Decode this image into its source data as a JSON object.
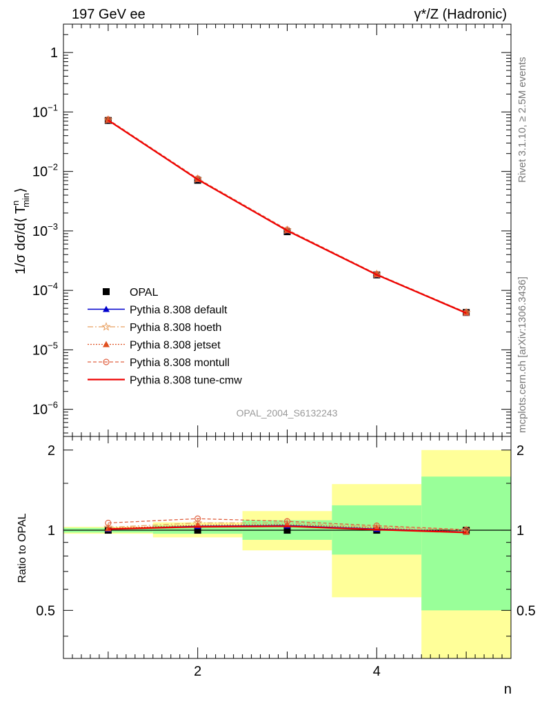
{
  "header": {
    "left": "197 GeV ee",
    "right": "γ*/Z (Hadronic)"
  },
  "side_labels": {
    "rivet": "Rivet 3.1.10, ≥ 2.5M events",
    "mcplots": "mcplots.cern.ch [arXiv:1306.3436]"
  },
  "analysis_id": "OPAL_2004_S6132243",
  "xlabel": "n",
  "colors": {
    "data": "#000000",
    "default": "#0000cc",
    "hoeth": "#e8a060",
    "jetset": "#e05020",
    "montull": "#e06040",
    "tunecmw": "#ee0000",
    "band_inner": "#99ff99",
    "band_outer": "#ffff99"
  },
  "legend": [
    {
      "key": "data",
      "label": "OPAL"
    },
    {
      "key": "default",
      "label": "Pythia 8.308 default"
    },
    {
      "key": "hoeth",
      "label": "Pythia 8.308 hoeth"
    },
    {
      "key": "jetset",
      "label": "Pythia 8.308 jetset"
    },
    {
      "key": "montull",
      "label": "Pythia 8.308 montull"
    },
    {
      "key": "tunecmw",
      "label": "Pythia 8.308 tune-cmw"
    }
  ],
  "chart_data": [
    {
      "type": "line",
      "ylabel_parts": {
        "main": "1/σ dσ/d⟨ T",
        "sup": "n",
        "sub": "min",
        "close": "⟩"
      },
      "yscale": "log",
      "xlim": [
        0.5,
        5.5
      ],
      "ylim": [
        3.5e-07,
        3.0
      ],
      "ytick_labels": [
        {
          "base": "1",
          "exp": ""
        },
        {
          "base": "10",
          "exp": "−1"
        },
        {
          "base": "10",
          "exp": "−2"
        },
        {
          "base": "10",
          "exp": "−3"
        },
        {
          "base": "10",
          "exp": "−4"
        },
        {
          "base": "10",
          "exp": "−5"
        },
        {
          "base": "10",
          "exp": "−6"
        }
      ],
      "x": [
        1,
        2,
        3,
        4,
        5
      ],
      "data_values": [
        0.072,
        0.0071,
        0.00097,
        0.000182,
        4.25e-05
      ],
      "series": [
        {
          "key": "default",
          "name": "Pythia 8.308 default",
          "values": [
            0.0727,
            0.00735,
            0.00101,
            0.000184,
            4.18e-05
          ]
        },
        {
          "key": "hoeth",
          "name": "Pythia 8.308 hoeth",
          "values": [
            0.0735,
            0.00748,
            0.00103,
            0.000187,
            4.25e-05
          ]
        },
        {
          "key": "jetset",
          "name": "Pythia 8.308 jetset",
          "values": [
            0.073,
            0.0074,
            0.00102,
            0.000185,
            4.2e-05
          ]
        },
        {
          "key": "montull",
          "name": "Pythia 8.308 montull",
          "values": [
            0.075,
            0.0076,
            0.00105,
            0.000188,
            4.26e-05
          ]
        },
        {
          "key": "tunecmw",
          "name": "Pythia 8.308 tune-cmw",
          "values": [
            0.0726,
            0.00733,
            0.00101,
            0.000183,
            4.15e-05
          ]
        }
      ]
    },
    {
      "type": "line",
      "ylabel": "Ratio to OPAL",
      "xlim": [
        0.5,
        5.5
      ],
      "ylim": [
        0.33,
        2.25
      ],
      "xtick_labels": [
        "2",
        "4"
      ],
      "ytick_labels": [
        "0.5",
        "1",
        "2"
      ],
      "bands": [
        {
          "x0": 0.5,
          "x1": 1.5,
          "inner": [
            0.98,
            1.02
          ],
          "outer": [
            0.97,
            1.03
          ]
        },
        {
          "x0": 1.5,
          "x1": 2.5,
          "inner": [
            0.97,
            1.04
          ],
          "outer": [
            0.94,
            1.07
          ]
        },
        {
          "x0": 2.5,
          "x1": 3.5,
          "inner": [
            0.92,
            1.09
          ],
          "outer": [
            0.84,
            1.18
          ]
        },
        {
          "x0": 3.5,
          "x1": 4.5,
          "inner": [
            0.81,
            1.24
          ],
          "outer": [
            0.56,
            1.49
          ]
        },
        {
          "x0": 4.5,
          "x1": 5.5,
          "inner": [
            0.5,
            1.59
          ],
          "outer": [
            0.33,
            2.0
          ]
        }
      ],
      "x": [
        1,
        2,
        3,
        4,
        5
      ],
      "series": [
        {
          "key": "default",
          "values": [
            1.01,
            1.035,
            1.04,
            1.01,
            0.985
          ]
        },
        {
          "key": "hoeth",
          "values": [
            1.025,
            1.065,
            1.065,
            1.03,
            1.0
          ]
        },
        {
          "key": "jetset",
          "values": [
            1.015,
            1.045,
            1.05,
            1.02,
            0.985
          ]
        },
        {
          "key": "montull",
          "values": [
            1.065,
            1.105,
            1.08,
            1.04,
            1.005
          ]
        },
        {
          "key": "tunecmw",
          "values": [
            1.01,
            1.03,
            1.035,
            1.005,
            0.98
          ]
        }
      ]
    }
  ]
}
